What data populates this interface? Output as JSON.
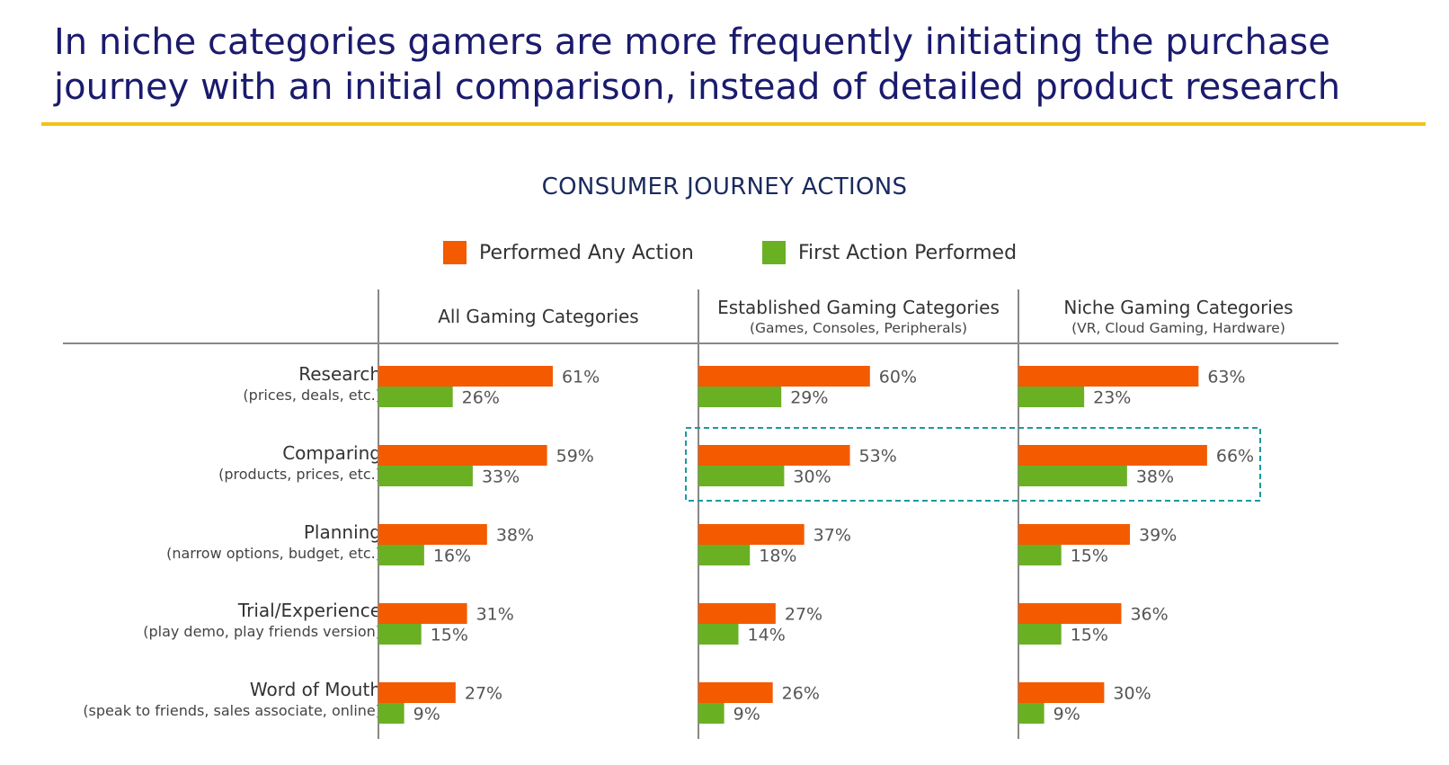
{
  "headline": {
    "line1": "In niche categories gamers are more frequently initiating the purchase",
    "line2": "journey with an initial comparison, instead of detailed product research"
  },
  "colors": {
    "headline": "#1a1a6e",
    "rule": "#f2c314",
    "any_action": "#f45a00",
    "first_action": "#6ab023",
    "highlight_box": "#1a9aa0",
    "axis": "#888888"
  },
  "chart_data": {
    "type": "bar",
    "orientation": "horizontal",
    "title": "CONSUMER JOURNEY ACTIONS",
    "legend": {
      "position": "top-center",
      "items": [
        {
          "name": "Performed Any Action",
          "color": "#f45a00"
        },
        {
          "name": "First Action Performed",
          "color": "#6ab023"
        }
      ]
    },
    "categories": [
      {
        "label": "Research",
        "sublabel": "(prices, deals, etc.)"
      },
      {
        "label": "Comparing",
        "sublabel": "(products, prices, etc.)"
      },
      {
        "label": "Planning",
        "sublabel": "(narrow options, budget, etc.)"
      },
      {
        "label": "Trial/Experience",
        "sublabel": "(play demo, play friends version)"
      },
      {
        "label": "Word of Mouth",
        "sublabel": "(speak to friends, sales associate, online)"
      }
    ],
    "panels": [
      {
        "title": "All Gaming Categories",
        "subtitle": "",
        "series": [
          {
            "name": "Performed Any Action",
            "values": [
              61,
              59,
              38,
              31,
              27
            ]
          },
          {
            "name": "First Action Performed",
            "values": [
              26,
              33,
              16,
              15,
              9
            ]
          }
        ]
      },
      {
        "title": "Established Gaming Categories",
        "subtitle": "(Games, Consoles, Peripherals)",
        "series": [
          {
            "name": "Performed Any Action",
            "values": [
              60,
              53,
              37,
              27,
              26
            ]
          },
          {
            "name": "First Action Performed",
            "values": [
              29,
              30,
              18,
              14,
              9
            ]
          }
        ]
      },
      {
        "title": "Niche Gaming Categories",
        "subtitle": "(VR, Cloud Gaming, Hardware)",
        "series": [
          {
            "name": "Performed Any Action",
            "values": [
              63,
              66,
              39,
              36,
              30
            ]
          },
          {
            "name": "First Action Performed",
            "values": [
              23,
              38,
              15,
              15,
              9
            ]
          }
        ]
      }
    ],
    "value_suffix": "%",
    "highlight": {
      "category": "Comparing",
      "panels": [
        "Established Gaming Categories",
        "Niche Gaming Categories"
      ]
    }
  }
}
